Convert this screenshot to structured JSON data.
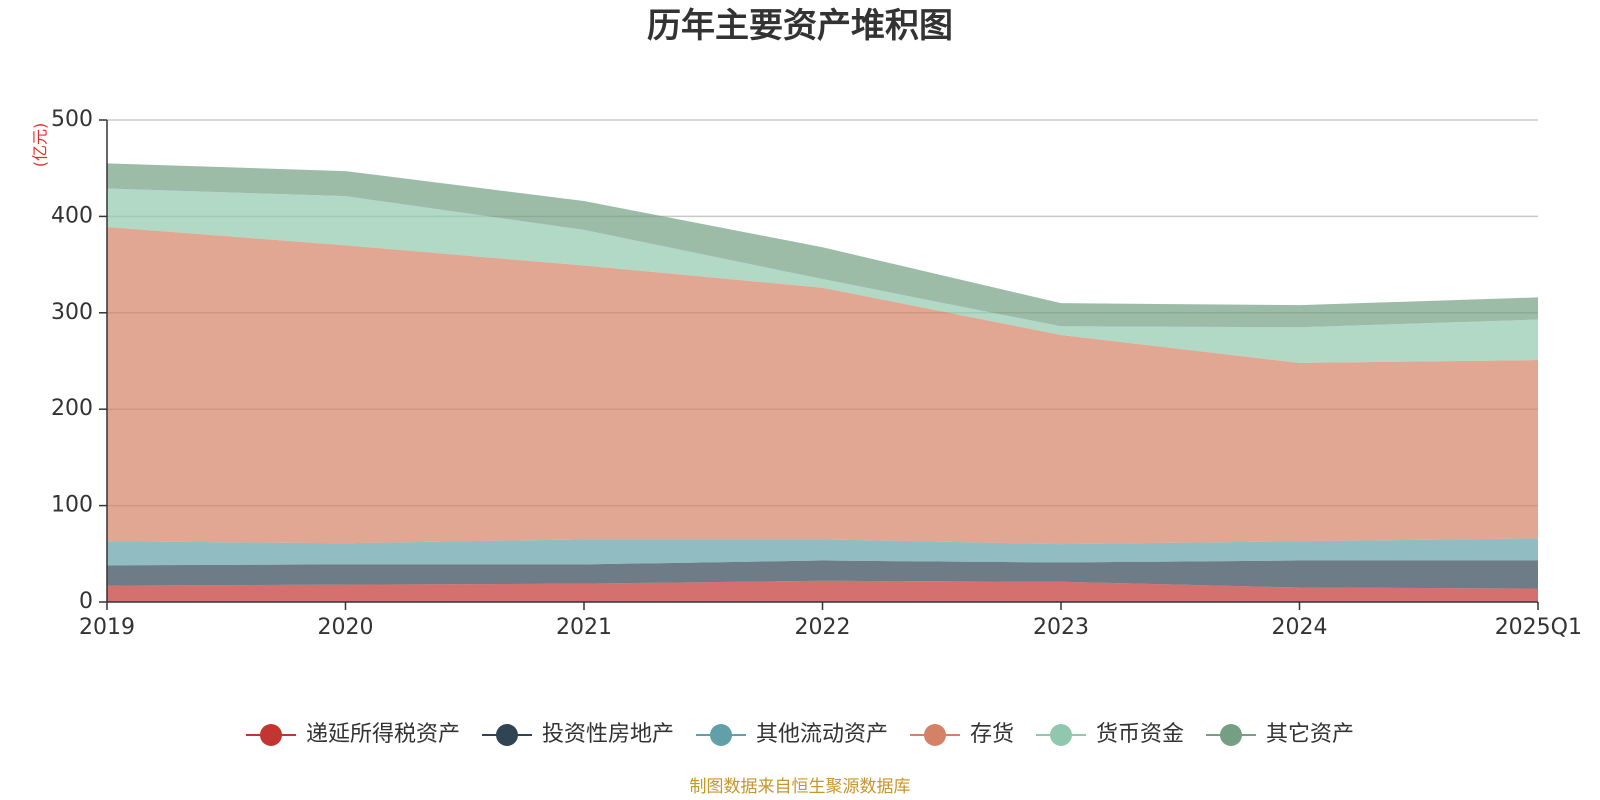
{
  "chart_data": {
    "type": "area",
    "stacked": true,
    "title": "历年主要资产堆积图",
    "y_unit": "(亿元)",
    "categories": [
      "2019",
      "2020",
      "2021",
      "2022",
      "2023",
      "2024",
      "2025Q1"
    ],
    "ylim": [
      0,
      500
    ],
    "yticks": [
      "0",
      "100",
      "200",
      "300",
      "400",
      "500"
    ],
    "grid": true,
    "legend_position": "bottom",
    "series": [
      {
        "name": "递延所得税资产",
        "color": "#c23531",
        "values": [
          17,
          18,
          19,
          22,
          21,
          15,
          14
        ]
      },
      {
        "name": "投资性房地产",
        "color": "#2f4554",
        "values": [
          21,
          21,
          20,
          21,
          20,
          28,
          29
        ]
      },
      {
        "name": "其他流动资产",
        "color": "#61a0a8",
        "values": [
          25,
          22,
          26,
          22,
          19,
          20,
          23
        ]
      },
      {
        "name": "存货",
        "color": "#d48265",
        "values": [
          326,
          309,
          284,
          261,
          217,
          185,
          185
        ]
      },
      {
        "name": "货币资金",
        "color": "#91c7ae",
        "values": [
          40,
          51,
          37,
          9,
          9,
          37,
          42
        ]
      },
      {
        "name": "其它资产",
        "color": "#749f83",
        "values": [
          26,
          26,
          30,
          33,
          24,
          23,
          23
        ]
      }
    ]
  },
  "source_text": "制图数据来自恒生聚源数据库"
}
